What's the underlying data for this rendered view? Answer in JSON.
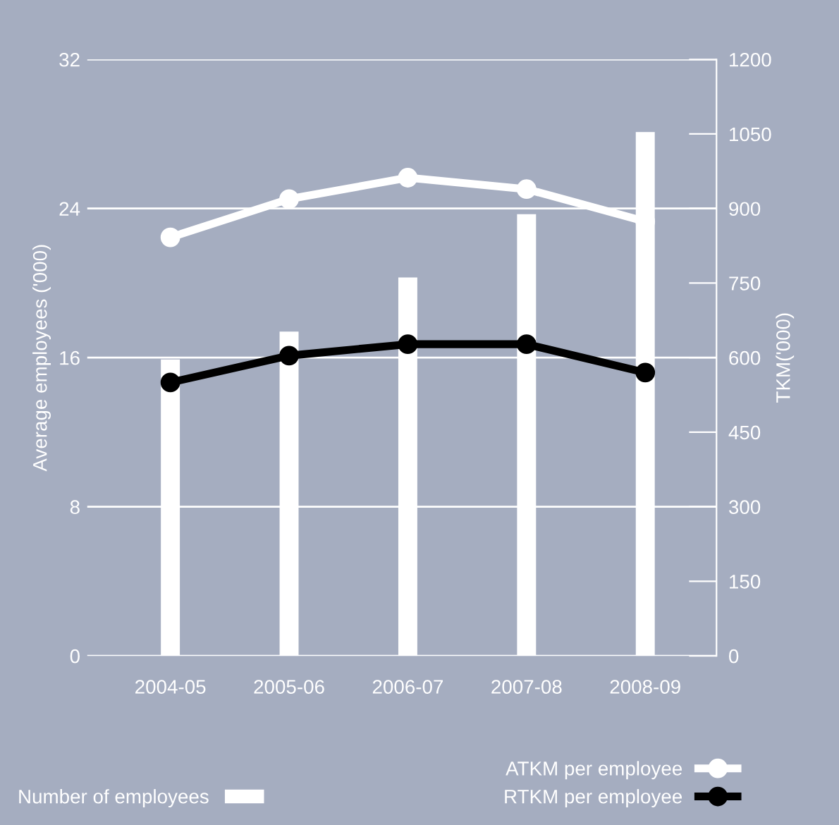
{
  "chart_data": {
    "type": "bar",
    "categories": [
      "2004-05",
      "2005-06",
      "2006-07",
      "2007-08",
      "2008-09"
    ],
    "ylabel": "Average employees ('000)",
    "y2label": "TKM('000)",
    "ylim": [
      0,
      32
    ],
    "yticks": [
      0,
      8,
      16,
      24,
      32
    ],
    "y2lim": [
      0,
      1200
    ],
    "y2ticks": [
      0,
      150,
      300,
      450,
      600,
      750,
      900,
      1050,
      1200
    ],
    "grid": "y",
    "legend": "bottom",
    "series": [
      {
        "name": "Number of employees",
        "color": "#ffffff",
        "values": [
          15.9,
          17.4,
          20.3,
          23.7,
          28.1
        ]
      },
      {
        "name": "ATKM per employee",
        "type": "line",
        "axis": "y2",
        "color": "#ffffff",
        "marker": "circle",
        "values": [
          842,
          919,
          962,
          939,
          874
        ]
      },
      {
        "name": "RTKM per employee",
        "type": "line",
        "axis": "y2",
        "color": "#000000",
        "marker": "circle",
        "values": [
          550,
          604,
          627,
          627,
          570
        ]
      }
    ]
  }
}
